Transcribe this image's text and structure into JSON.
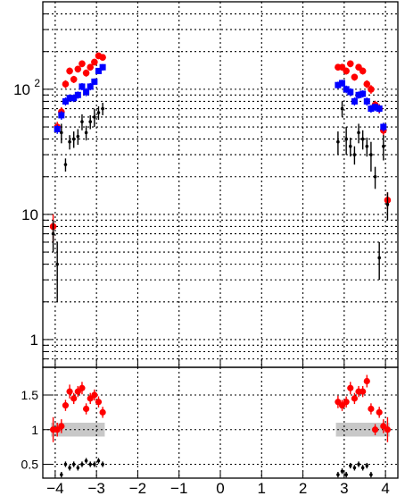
{
  "chart_data": [
    {
      "type": "scatter",
      "yscale": "log",
      "xlim": [
        -4.3,
        4.3
      ],
      "ylim": [
        0.6,
        500
      ],
      "grid": true,
      "x_tick_values": [
        -4,
        -3,
        -2,
        -1,
        0,
        1,
        2,
        3,
        4
      ],
      "y_tick_values": [
        1,
        10,
        100
      ],
      "y_tick_labels": [
        {
          "mantissa": "1",
          "exponent": ""
        },
        {
          "mantissa": "10",
          "exponent": ""
        },
        {
          "mantissa": "10",
          "exponent": "2"
        }
      ],
      "series": [
        {
          "color": "#ff0000",
          "marker": "circle",
          "points": [
            {
              "x": -4.05,
              "y": 8,
              "err": 2
            },
            {
              "x": -3.95,
              "y": 50,
              "err": 5
            },
            {
              "x": -3.85,
              "y": 66,
              "err": 6
            },
            {
              "x": -3.75,
              "y": 110,
              "err": 8
            },
            {
              "x": -3.65,
              "y": 140,
              "err": 9
            },
            {
              "x": -3.55,
              "y": 120,
              "err": 8
            },
            {
              "x": -3.45,
              "y": 145,
              "err": 9
            },
            {
              "x": -3.35,
              "y": 160,
              "err": 10
            },
            {
              "x": -3.25,
              "y": 135,
              "err": 9
            },
            {
              "x": -3.15,
              "y": 150,
              "err": 9
            },
            {
              "x": -3.05,
              "y": 165,
              "err": 10
            },
            {
              "x": -2.95,
              "y": 185,
              "err": 11
            },
            {
              "x": -2.85,
              "y": 180,
              "err": 11
            },
            {
              "x": 2.85,
              "y": 150,
              "err": 9
            },
            {
              "x": 2.95,
              "y": 150,
              "err": 9
            },
            {
              "x": 3.05,
              "y": 140,
              "err": 9
            },
            {
              "x": 3.15,
              "y": 160,
              "err": 10
            },
            {
              "x": 3.25,
              "y": 125,
              "err": 8
            },
            {
              "x": 3.35,
              "y": 150,
              "err": 9
            },
            {
              "x": 3.45,
              "y": 140,
              "err": 9
            },
            {
              "x": 3.55,
              "y": 110,
              "err": 8
            },
            {
              "x": 3.65,
              "y": 100,
              "err": 8
            },
            {
              "x": 3.75,
              "y": 75,
              "err": 6
            },
            {
              "x": 3.85,
              "y": 70,
              "err": 6
            },
            {
              "x": 3.95,
              "y": 47,
              "err": 5
            },
            {
              "x": 4.05,
              "y": 13,
              "err": 2
            }
          ]
        },
        {
          "color": "#0000ff",
          "marker": "square",
          "points": [
            {
              "x": -3.95,
              "y": 48,
              "err": 4
            },
            {
              "x": -3.85,
              "y": 62,
              "err": 5
            },
            {
              "x": -3.75,
              "y": 80,
              "err": 6
            },
            {
              "x": -3.65,
              "y": 85,
              "err": 6
            },
            {
              "x": -3.55,
              "y": 85,
              "err": 6
            },
            {
              "x": -3.45,
              "y": 90,
              "err": 6
            },
            {
              "x": -3.35,
              "y": 105,
              "err": 7
            },
            {
              "x": -3.25,
              "y": 95,
              "err": 7
            },
            {
              "x": -3.15,
              "y": 105,
              "err": 7
            },
            {
              "x": -3.05,
              "y": 115,
              "err": 7
            },
            {
              "x": -2.95,
              "y": 140,
              "err": 8
            },
            {
              "x": -2.85,
              "y": 150,
              "err": 9
            },
            {
              "x": 2.85,
              "y": 108,
              "err": 7
            },
            {
              "x": 2.95,
              "y": 112,
              "err": 7
            },
            {
              "x": 3.05,
              "y": 100,
              "err": 7
            },
            {
              "x": 3.15,
              "y": 95,
              "err": 7
            },
            {
              "x": 3.25,
              "y": 80,
              "err": 6
            },
            {
              "x": 3.35,
              "y": 90,
              "err": 6
            },
            {
              "x": 3.45,
              "y": 92,
              "err": 6
            },
            {
              "x": 3.55,
              "y": 80,
              "err": 6
            },
            {
              "x": 3.65,
              "y": 70,
              "err": 5
            },
            {
              "x": 3.75,
              "y": 72,
              "err": 5
            },
            {
              "x": 3.85,
              "y": 70,
              "err": 5
            },
            {
              "x": 3.95,
              "y": 50,
              "err": 4
            }
          ]
        },
        {
          "color": "#000000",
          "marker": "dot",
          "points": [
            {
              "x": -4.05,
              "y": 7,
              "err": 2
            },
            {
              "x": -3.95,
              "y": 4,
              "err": 2
            },
            {
              "x": -3.85,
              "y": 45,
              "err": 8
            },
            {
              "x": -3.75,
              "y": 25,
              "err": 3
            },
            {
              "x": -3.65,
              "y": 38,
              "err": 5
            },
            {
              "x": -3.55,
              "y": 40,
              "err": 6
            },
            {
              "x": -3.45,
              "y": 42,
              "err": 6
            },
            {
              "x": -3.35,
              "y": 55,
              "err": 8
            },
            {
              "x": -3.25,
              "y": 45,
              "err": 6
            },
            {
              "x": -3.15,
              "y": 55,
              "err": 7
            },
            {
              "x": -3.05,
              "y": 60,
              "err": 10
            },
            {
              "x": -2.95,
              "y": 65,
              "err": 8
            },
            {
              "x": -2.85,
              "y": 70,
              "err": 8
            },
            {
              "x": 2.85,
              "y": 38,
              "err": 8
            },
            {
              "x": 2.95,
              "y": 70,
              "err": 10
            },
            {
              "x": 3.05,
              "y": 40,
              "err": 10
            },
            {
              "x": 3.15,
              "y": 35,
              "err": 6
            },
            {
              "x": 3.25,
              "y": 30,
              "err": 5
            },
            {
              "x": 3.35,
              "y": 45,
              "err": 8
            },
            {
              "x": 3.45,
              "y": 40,
              "err": 7
            },
            {
              "x": 3.55,
              "y": 35,
              "err": 6
            },
            {
              "x": 3.65,
              "y": 30,
              "err": 8
            },
            {
              "x": 3.75,
              "y": 20,
              "err": 4
            },
            {
              "x": 3.85,
              "y": 4.5,
              "err": 1.5
            },
            {
              "x": 3.95,
              "y": 35,
              "err": 8
            },
            {
              "x": 4.05,
              "y": 12,
              "err": 3
            }
          ]
        }
      ]
    },
    {
      "type": "scatter",
      "xlim": [
        -4.3,
        4.3
      ],
      "ylim": [
        0.3,
        1.9
      ],
      "grid": true,
      "x_tick_labels": [
        "−4",
        "−3",
        "−2",
        "−1",
        "0",
        "1",
        "2",
        "3",
        "4"
      ],
      "x_tick_values": [
        -4,
        -3,
        -2,
        -1,
        0,
        1,
        2,
        3,
        4
      ],
      "y_tick_labels": [
        "0.5",
        "1",
        "1.5"
      ],
      "y_tick_values": [
        0.5,
        1,
        1.5
      ],
      "band": {
        "color": "#c8c8c8",
        "regions": [
          {
            "x_start": -4.1,
            "x_end": -2.8,
            "low": 0.9,
            "high": 1.1
          },
          {
            "x_start": 2.8,
            "x_end": 4.1,
            "low": 0.9,
            "high": 1.1
          }
        ]
      },
      "series": [
        {
          "color": "#ff0000",
          "marker": "circle",
          "points": [
            {
              "x": -4.05,
              "y": 1.0,
              "err": 0.18
            },
            {
              "x": -3.95,
              "y": 1.0,
              "err": 0.1
            },
            {
              "x": -3.85,
              "y": 1.05,
              "err": 0.1
            },
            {
              "x": -3.75,
              "y": 1.35,
              "err": 0.08
            },
            {
              "x": -3.65,
              "y": 1.55,
              "err": 0.1
            },
            {
              "x": -3.55,
              "y": 1.45,
              "err": 0.08
            },
            {
              "x": -3.45,
              "y": 1.55,
              "err": 0.08
            },
            {
              "x": -3.35,
              "y": 1.6,
              "err": 0.09
            },
            {
              "x": -3.25,
              "y": 1.3,
              "err": 0.08
            },
            {
              "x": -3.15,
              "y": 1.45,
              "err": 0.08
            },
            {
              "x": -3.05,
              "y": 1.5,
              "err": 0.08
            },
            {
              "x": -2.95,
              "y": 1.4,
              "err": 0.08
            },
            {
              "x": -2.85,
              "y": 1.25,
              "err": 0.08
            },
            {
              "x": 2.85,
              "y": 1.4,
              "err": 0.09
            },
            {
              "x": 2.95,
              "y": 1.35,
              "err": 0.08
            },
            {
              "x": 3.05,
              "y": 1.4,
              "err": 0.08
            },
            {
              "x": 3.15,
              "y": 1.6,
              "err": 0.09
            },
            {
              "x": 3.25,
              "y": 1.45,
              "err": 0.08
            },
            {
              "x": 3.35,
              "y": 1.55,
              "err": 0.08
            },
            {
              "x": 3.45,
              "y": 1.55,
              "err": 0.08
            },
            {
              "x": 3.55,
              "y": 1.7,
              "err": 0.09
            },
            {
              "x": 3.65,
              "y": 1.3,
              "err": 0.08
            },
            {
              "x": 3.75,
              "y": 1.0,
              "err": 0.08
            },
            {
              "x": 3.85,
              "y": 1.25,
              "err": 0.08
            },
            {
              "x": 3.95,
              "y": 1.05,
              "err": 0.1
            },
            {
              "x": 4.05,
              "y": 1.0,
              "err": 0.18
            }
          ]
        },
        {
          "color": "#000000",
          "marker": "dot",
          "points": [
            {
              "x": -3.85,
              "y": 0.35,
              "err": 0.04
            },
            {
              "x": -3.75,
              "y": 0.5,
              "err": 0.04
            },
            {
              "x": -3.65,
              "y": 0.45,
              "err": 0.04
            },
            {
              "x": -3.55,
              "y": 0.5,
              "err": 0.04
            },
            {
              "x": -3.45,
              "y": 0.45,
              "err": 0.04
            },
            {
              "x": -3.35,
              "y": 0.5,
              "err": 0.04
            },
            {
              "x": -3.25,
              "y": 0.55,
              "err": 0.04
            },
            {
              "x": -3.15,
              "y": 0.5,
              "err": 0.04
            },
            {
              "x": -3.05,
              "y": 0.5,
              "err": 0.04
            },
            {
              "x": -2.95,
              "y": 0.55,
              "err": 0.04
            },
            {
              "x": -2.85,
              "y": 0.5,
              "err": 0.04
            },
            {
              "x": 2.85,
              "y": 0.35,
              "err": 0.04
            },
            {
              "x": 2.95,
              "y": 0.4,
              "err": 0.04
            },
            {
              "x": 3.05,
              "y": 0.35,
              "err": 0.04
            },
            {
              "x": 3.15,
              "y": 0.48,
              "err": 0.04
            },
            {
              "x": 3.25,
              "y": 0.45,
              "err": 0.04
            },
            {
              "x": 3.35,
              "y": 0.5,
              "err": 0.04
            },
            {
              "x": 3.45,
              "y": 0.45,
              "err": 0.04
            },
            {
              "x": 3.55,
              "y": 0.48,
              "err": 0.04
            },
            {
              "x": 3.65,
              "y": 0.35,
              "err": 0.04
            }
          ]
        }
      ]
    }
  ]
}
